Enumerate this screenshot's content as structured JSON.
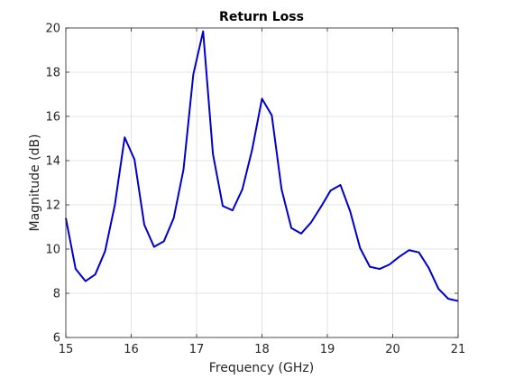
{
  "chart_data": {
    "type": "line",
    "title": "Return Loss",
    "xlabel": "Frequency (GHz)",
    "ylabel": "Magnitude (dB)",
    "xlim": [
      15,
      21
    ],
    "ylim": [
      6,
      20
    ],
    "xticks": [
      "15",
      "16",
      "17",
      "18",
      "19",
      "20",
      "21"
    ],
    "yticks": [
      "6",
      "8",
      "10",
      "12",
      "14",
      "16",
      "18",
      "20"
    ],
    "grid": true,
    "line_color": "#0000cd",
    "series": [
      {
        "x": [
          15.0,
          15.15,
          15.3,
          15.45,
          15.6,
          15.75,
          15.9,
          16.05,
          16.2,
          16.35,
          16.5,
          16.65,
          16.8,
          16.95,
          17.1,
          17.25,
          17.4,
          17.55,
          17.7,
          17.85,
          18.0,
          18.15,
          18.3,
          18.45,
          18.6,
          18.75,
          18.9,
          19.05,
          19.2,
          19.35,
          19.5,
          19.65,
          19.8,
          19.95,
          20.1,
          20.25,
          20.4,
          20.55,
          20.7,
          20.85,
          21.0
        ],
        "y": [
          11.4,
          9.1,
          8.55,
          8.85,
          9.9,
          12.0,
          15.05,
          14.05,
          11.1,
          10.1,
          10.35,
          11.4,
          13.6,
          17.9,
          19.85,
          14.3,
          11.95,
          11.75,
          12.7,
          14.5,
          16.8,
          16.05,
          12.7,
          10.95,
          10.7,
          11.2,
          11.9,
          12.65,
          12.9,
          11.7,
          10.05,
          9.2,
          9.1,
          9.3,
          9.65,
          9.95,
          9.85,
          9.15,
          8.2,
          7.75,
          7.65
        ]
      }
    ]
  }
}
